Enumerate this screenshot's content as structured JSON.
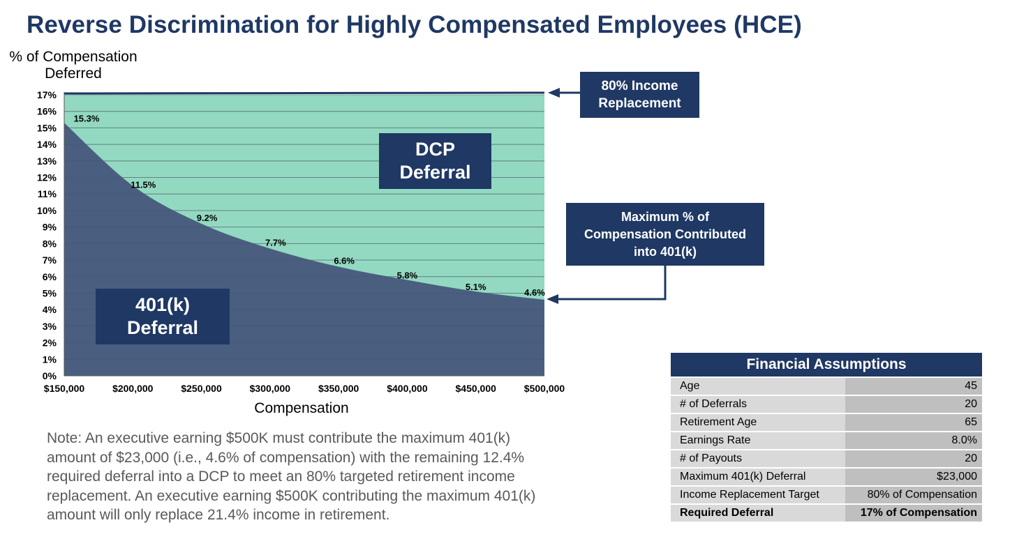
{
  "page": {
    "title": "Reverse Discrimination for Highly Compensated Employees (HCE)"
  },
  "chart_data": {
    "type": "area",
    "ylabel": "% of Compensation Deferred",
    "xlabel": "Compensation",
    "ylim": [
      0,
      17
    ],
    "xlim": [
      150000,
      500000
    ],
    "y_ticks": [
      "0%",
      "1%",
      "2%",
      "3%",
      "4%",
      "5%",
      "6%",
      "7%",
      "8%",
      "9%",
      "10%",
      "11%",
      "12%",
      "13%",
      "14%",
      "15%",
      "16%",
      "17%"
    ],
    "x_ticks": [
      "$150,000",
      "$200,000",
      "$250,000",
      "$300,000",
      "$350,000",
      "$400,000",
      "$450,000",
      "$500,000"
    ],
    "grid": true,
    "series": [
      {
        "name": "401(k) Deferral",
        "x": [
          150000,
          200000,
          250000,
          300000,
          350000,
          400000,
          450000,
          500000
        ],
        "values": [
          15.3,
          11.5,
          9.2,
          7.7,
          6.6,
          5.8,
          5.1,
          4.6
        ],
        "labels": [
          "15.3%",
          "11.5%",
          "9.2%",
          "7.7%",
          "6.6%",
          "5.8%",
          "5.1%",
          "4.6%"
        ],
        "color": "#4a5f80"
      },
      {
        "name": "DCP Deferral",
        "x": [
          150000,
          500000
        ],
        "values": [
          17,
          17
        ],
        "color": "#93d9c2"
      }
    ],
    "target_line": {
      "value": 17,
      "color": "#1f3864"
    },
    "annotations": {
      "income_replacement": [
        "80% Income",
        "Replacement"
      ],
      "dcp": [
        "DCP",
        "Deferral"
      ],
      "max_401k": [
        "Maximum % of",
        "Compensation Contributed",
        "into 401(k)"
      ],
      "k401": [
        "401(k)",
        "Deferral"
      ]
    }
  },
  "note": "Note:  An executive earning $500K must contribute the maximum 401(k) amount of $23,000 (i.e., 4.6% of compensation) with the remaining 12.4% required deferral into a DCP to meet an 80% targeted retirement income replacement.  An executive earning $500K contributing the maximum 401(k) amount will only replace 21.4% income in retirement.",
  "table": {
    "title": "Financial Assumptions",
    "rows": [
      {
        "label": "Age",
        "value": "45"
      },
      {
        "label": "# of Deferrals",
        "value": "20"
      },
      {
        "label": "Retirement Age",
        "value": "65"
      },
      {
        "label": "Earnings Rate",
        "value": "8.0%"
      },
      {
        "label": "# of Payouts",
        "value": "20"
      },
      {
        "label": "Maximum 401(k) Deferral",
        "value": "$23,000"
      },
      {
        "label": "Income Replacement Target",
        "value": "80% of Compensation"
      },
      {
        "label": "Required Deferral",
        "value": "17% of Compensation"
      }
    ]
  }
}
